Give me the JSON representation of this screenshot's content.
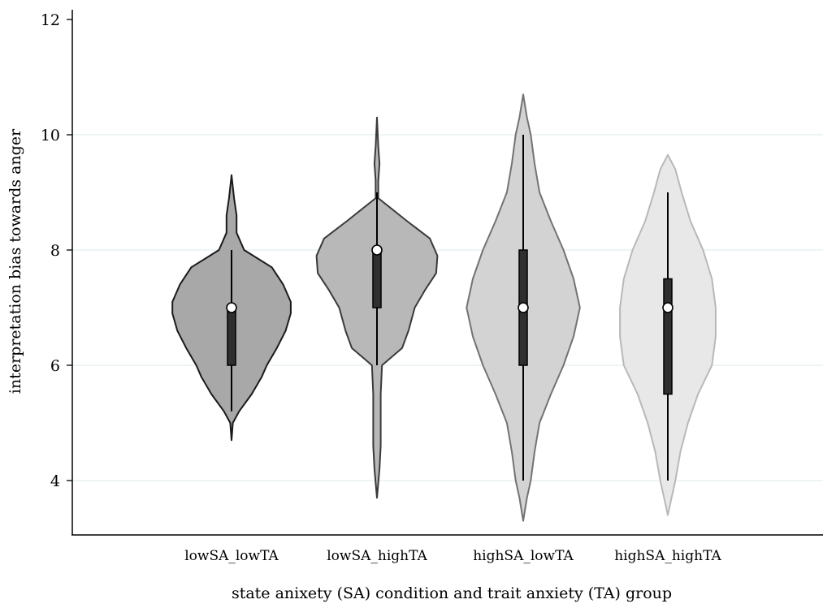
{
  "chart_data": {
    "type": "violin",
    "title": "",
    "xlabel": "state anixety (SA) condition and trait anxiety (TA) group",
    "ylabel": "interpretation bias towards anger",
    "ylim": [
      3.1,
      12.2
    ],
    "yticks": [
      4,
      6,
      8,
      10,
      12
    ],
    "grid": "horizontal",
    "categories": [
      "lowSA_lowTA",
      "lowSA_highTA",
      "highSA_lowTA",
      "highSA_highTA"
    ],
    "series": [
      {
        "category": "lowSA_lowTA",
        "median": 7,
        "q1": 6,
        "q3": 7,
        "whisker_low": 5.2,
        "whisker_high": 8,
        "min": 4.7,
        "max": 9.3,
        "fill": "#a8a8a8",
        "stroke": "#1a1a1a",
        "density": [
          [
            4.7,
            0.0
          ],
          [
            5.0,
            0.01
          ],
          [
            5.2,
            0.06
          ],
          [
            5.5,
            0.16
          ],
          [
            5.8,
            0.24
          ],
          [
            6.0,
            0.28
          ],
          [
            6.3,
            0.36
          ],
          [
            6.6,
            0.43
          ],
          [
            6.9,
            0.47
          ],
          [
            7.1,
            0.47
          ],
          [
            7.4,
            0.41
          ],
          [
            7.7,
            0.32
          ],
          [
            8.0,
            0.1
          ],
          [
            8.3,
            0.04
          ],
          [
            8.6,
            0.04
          ],
          [
            8.9,
            0.02
          ],
          [
            9.3,
            0.0
          ]
        ]
      },
      {
        "category": "lowSA_highTA",
        "median": 8,
        "q1": 7,
        "q3": 8,
        "whisker_low": 6,
        "whisker_high": 9,
        "min": 3.7,
        "max": 10.3,
        "fill": "#b8b8b8",
        "stroke": "#3a3a3a",
        "density": [
          [
            3.7,
            0.0
          ],
          [
            4.2,
            0.02
          ],
          [
            4.6,
            0.03
          ],
          [
            5.0,
            0.03
          ],
          [
            5.5,
            0.03
          ],
          [
            6.0,
            0.04
          ],
          [
            6.3,
            0.2
          ],
          [
            6.6,
            0.25
          ],
          [
            7.0,
            0.3
          ],
          [
            7.3,
            0.38
          ],
          [
            7.6,
            0.47
          ],
          [
            7.9,
            0.48
          ],
          [
            8.2,
            0.42
          ],
          [
            8.5,
            0.24
          ],
          [
            8.9,
            0.01
          ],
          [
            9.2,
            0.01
          ],
          [
            9.5,
            0.02
          ],
          [
            9.8,
            0.01
          ],
          [
            10.3,
            0.0
          ]
        ]
      },
      {
        "category": "highSA_lowTA",
        "median": 7,
        "q1": 6,
        "q3": 8,
        "whisker_low": 4,
        "whisker_high": 10,
        "min": 3.3,
        "max": 10.7,
        "fill": "#d3d3d3",
        "stroke": "#737373",
        "density": [
          [
            3.3,
            0.0
          ],
          [
            3.7,
            0.03
          ],
          [
            4.0,
            0.06
          ],
          [
            4.5,
            0.09
          ],
          [
            5.0,
            0.13
          ],
          [
            5.5,
            0.22
          ],
          [
            6.0,
            0.32
          ],
          [
            6.5,
            0.4
          ],
          [
            7.0,
            0.45
          ],
          [
            7.5,
            0.4
          ],
          [
            8.0,
            0.32
          ],
          [
            8.5,
            0.22
          ],
          [
            9.0,
            0.13
          ],
          [
            9.5,
            0.09
          ],
          [
            10.0,
            0.06
          ],
          [
            10.3,
            0.03
          ],
          [
            10.7,
            0.0
          ]
        ]
      },
      {
        "category": "highSA_highTA",
        "median": 7,
        "q1": 5.5,
        "q3": 7.5,
        "whisker_low": 4,
        "whisker_high": 9,
        "min": 3.4,
        "max": 9.65,
        "fill": "#e8e8e8",
        "stroke": "#b8b8b8",
        "density": [
          [
            3.4,
            0.0
          ],
          [
            3.7,
            0.03
          ],
          [
            4.0,
            0.06
          ],
          [
            4.5,
            0.1
          ],
          [
            5.0,
            0.16
          ],
          [
            5.5,
            0.24
          ],
          [
            6.0,
            0.35
          ],
          [
            6.5,
            0.38
          ],
          [
            7.0,
            0.38
          ],
          [
            7.5,
            0.35
          ],
          [
            8.0,
            0.28
          ],
          [
            8.5,
            0.18
          ],
          [
            9.0,
            0.11
          ],
          [
            9.4,
            0.06
          ],
          [
            9.65,
            0.0
          ]
        ]
      }
    ]
  }
}
